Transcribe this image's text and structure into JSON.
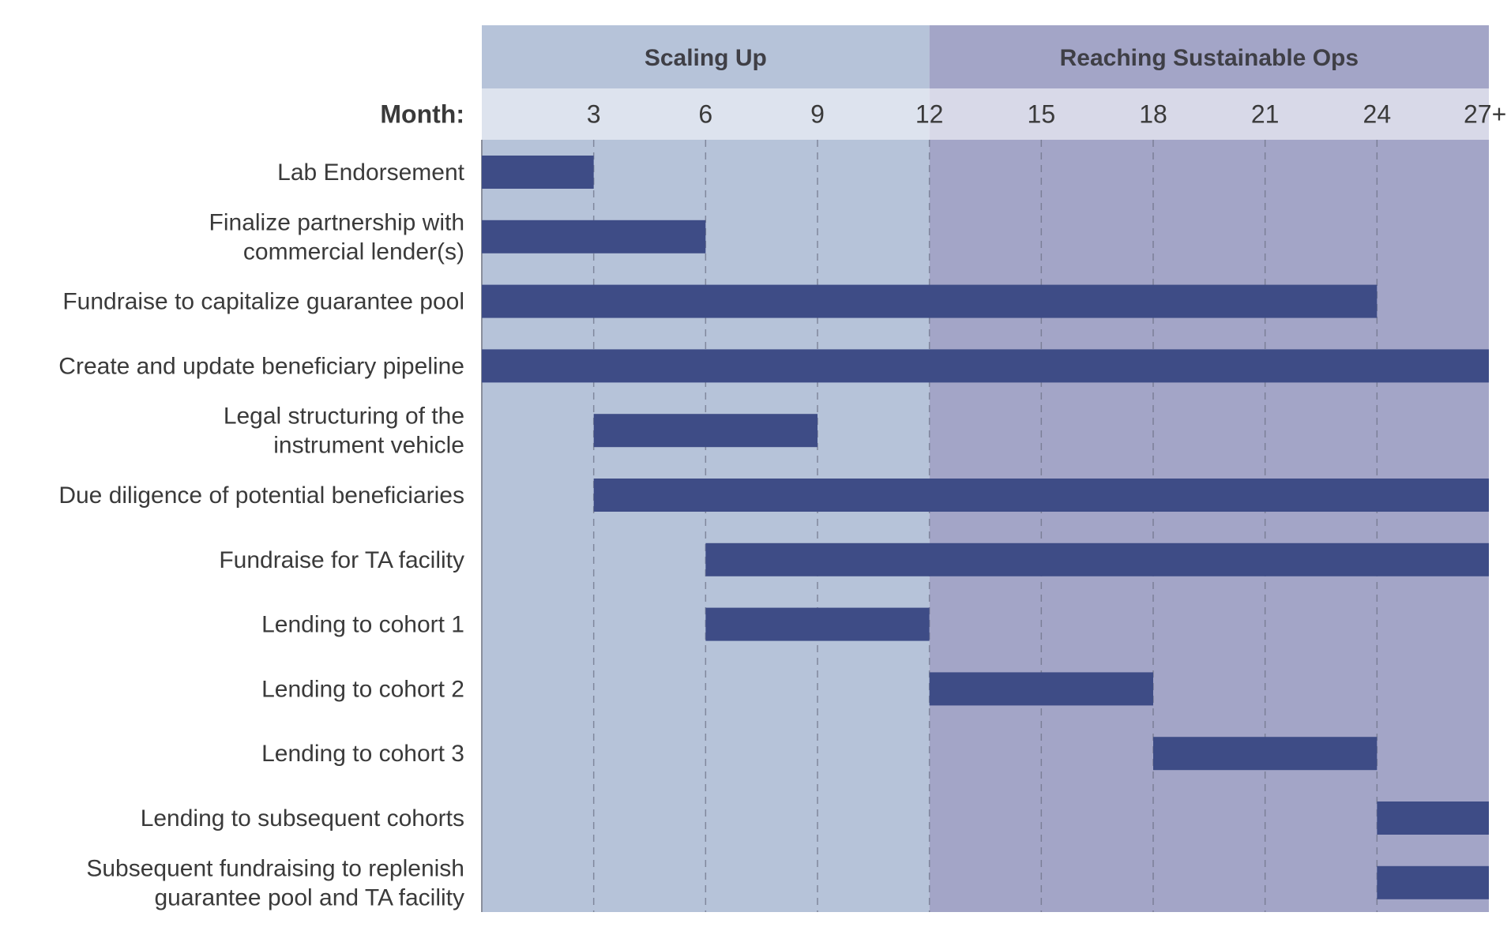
{
  "chart_data": {
    "type": "gantt",
    "xlabel": "Month:",
    "xlim": [
      0,
      27
    ],
    "ticks": [
      {
        "value": 3,
        "label": "3"
      },
      {
        "value": 6,
        "label": "6"
      },
      {
        "value": 9,
        "label": "9"
      },
      {
        "value": 12,
        "label": "12"
      },
      {
        "value": 15,
        "label": "15"
      },
      {
        "value": 18,
        "label": "18"
      },
      {
        "value": 21,
        "label": "21"
      },
      {
        "value": 24,
        "label": "24"
      },
      {
        "value": 27,
        "label": "27+"
      }
    ],
    "grid": "dashed vertical",
    "phases": [
      {
        "name": "Scaling Up",
        "start": 0,
        "end": 12,
        "color": "#b6c3d9",
        "header_color": "#b6c3d9",
        "strip_color": "#dde3ee"
      },
      {
        "name": "Reaching Sustainable Ops",
        "start": 12,
        "end": 27,
        "color": "#a3a5c7",
        "header_color": "#a3a5c7",
        "strip_color": "#d8d9e8"
      }
    ],
    "bar_color": "#3e4c86",
    "tasks": [
      {
        "label": [
          "Lab Endorsement"
        ],
        "start": 0,
        "end": 3
      },
      {
        "label": [
          "Finalize partnership with",
          "commercial lender(s)"
        ],
        "start": 0,
        "end": 6
      },
      {
        "label": [
          "Fundraise to capitalize guarantee pool"
        ],
        "start": 0,
        "end": 24
      },
      {
        "label": [
          "Create and update beneficiary pipeline"
        ],
        "start": 0,
        "end": 27
      },
      {
        "label": [
          "Legal structuring of the",
          "instrument vehicle"
        ],
        "start": 3,
        "end": 9
      },
      {
        "label": [
          "Due diligence of potential beneficiaries"
        ],
        "start": 3,
        "end": 27
      },
      {
        "label": [
          "Fundraise for TA facility"
        ],
        "start": 6,
        "end": 27
      },
      {
        "label": [
          "Lending to cohort 1"
        ],
        "start": 6,
        "end": 12
      },
      {
        "label": [
          "Lending to cohort 2"
        ],
        "start": 12,
        "end": 18
      },
      {
        "label": [
          "Lending to cohort 3"
        ],
        "start": 18,
        "end": 24
      },
      {
        "label": [
          "Lending to subsequent cohorts"
        ],
        "start": 24,
        "end": 27
      },
      {
        "label": [
          "Subsequent fundraising to replenish",
          "guarantee pool and TA facility"
        ],
        "start": 24,
        "end": 27
      }
    ]
  }
}
